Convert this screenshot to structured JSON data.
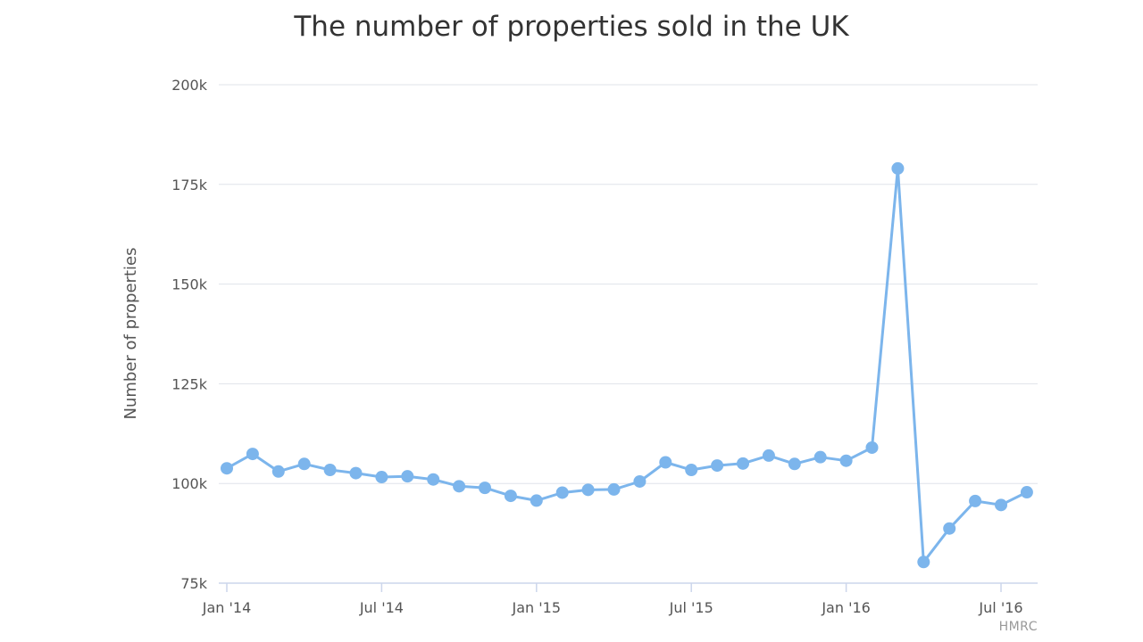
{
  "chart_data": {
    "type": "line",
    "title": "The number of properties sold in the UK",
    "ylabel": "Number of properties",
    "xlabel": "",
    "source": "HMRC",
    "color": "#7cb5ec",
    "grid": true,
    "ylim": [
      75000,
      200000
    ],
    "y_ticks": [
      {
        "value": 75000,
        "label": "75k"
      },
      {
        "value": 100000,
        "label": "100k"
      },
      {
        "value": 125000,
        "label": "125k"
      },
      {
        "value": 150000,
        "label": "150k"
      },
      {
        "value": 175000,
        "label": "175k"
      },
      {
        "value": 200000,
        "label": "200k"
      }
    ],
    "x_ticks": [
      {
        "index": 0,
        "label": "Jan '14"
      },
      {
        "index": 6,
        "label": "Jul '14"
      },
      {
        "index": 12,
        "label": "Jan '15"
      },
      {
        "index": 18,
        "label": "Jul '15"
      },
      {
        "index": 24,
        "label": "Jan '16"
      },
      {
        "index": 30,
        "label": "Jul '16"
      }
    ],
    "series": [
      {
        "x": [
          "2014-01",
          "2014-02",
          "2014-03",
          "2014-04",
          "2014-05",
          "2014-06",
          "2014-07",
          "2014-08",
          "2014-09",
          "2014-10",
          "2014-11",
          "2014-12",
          "2015-01",
          "2015-02",
          "2015-03",
          "2015-04",
          "2015-05",
          "2015-06",
          "2015-07",
          "2015-08",
          "2015-09",
          "2015-10",
          "2015-11",
          "2015-12",
          "2016-01",
          "2016-02",
          "2016-03",
          "2016-04",
          "2016-05",
          "2016-06",
          "2016-07",
          "2016-08"
        ],
        "values": [
          103800,
          107400,
          103000,
          104900,
          103400,
          102600,
          101600,
          101800,
          101000,
          99300,
          98900,
          96900,
          95700,
          97700,
          98400,
          98500,
          100500,
          105300,
          103400,
          104500,
          105000,
          107000,
          104900,
          106600,
          105700,
          109000,
          179000,
          80300,
          88700,
          95600,
          94600,
          97800
        ]
      }
    ]
  }
}
